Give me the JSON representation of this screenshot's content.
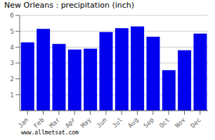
{
  "chart_data": {
    "type": "bar",
    "title": "New Orleans : precipitation (inch)",
    "categories": [
      "Jan",
      "Feb",
      "Mar",
      "Apr",
      "May",
      "Jun",
      "Jul",
      "Aug",
      "Sep",
      "Oct",
      "Nov",
      "Dec"
    ],
    "values": [
      4.3,
      5.15,
      4.2,
      3.85,
      3.9,
      4.95,
      5.2,
      5.3,
      4.65,
      2.55,
      3.8,
      4.85
    ],
    "color": "#0000ee",
    "ylim": [
      0,
      6
    ],
    "yticks": [
      1,
      2,
      3,
      4,
      5,
      6
    ],
    "grid": true,
    "annotations": [
      "www.allmetsat.com"
    ]
  }
}
